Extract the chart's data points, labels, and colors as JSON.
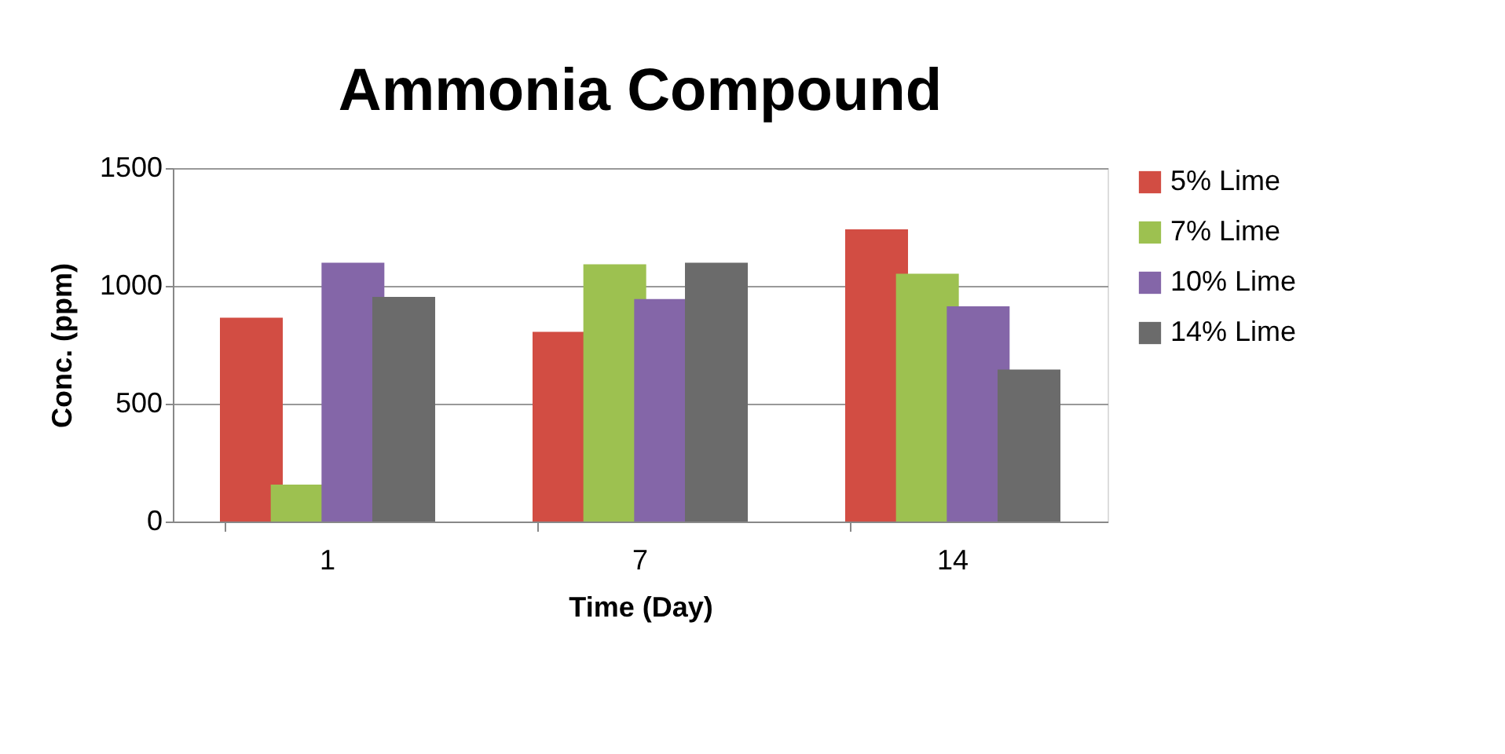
{
  "chart_data": {
    "type": "bar",
    "title": "Ammonia Compound",
    "xlabel": "Time (Day)",
    "ylabel": "Conc. (ppm)",
    "categories": [
      "1",
      "7",
      "14"
    ],
    "series": [
      {
        "name": "5% Lime",
        "color": "#d24d43",
        "values": [
          865,
          805,
          1240
        ]
      },
      {
        "name": "7% Lime",
        "color": "#9dc150",
        "values": [
          157,
          1092,
          1052
        ]
      },
      {
        "name": "10% Lime",
        "color": "#8466a8",
        "values": [
          1098,
          944,
          913
        ]
      },
      {
        "name": "14% Lime",
        "color": "#6b6b6b",
        "values": [
          953,
          1098,
          645
        ]
      }
    ],
    "ylim": [
      0,
      1500
    ],
    "yticks": [
      0,
      500,
      1000,
      1500
    ],
    "grid": "y",
    "legend": "right"
  }
}
